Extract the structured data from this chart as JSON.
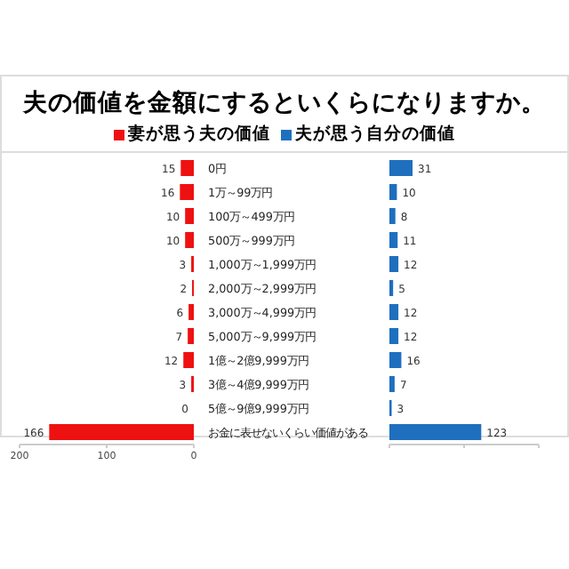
{
  "chart_data": [
    {
      "type": "bar",
      "orientation": "horizontal",
      "title": "夫の価値を金額にするといくらになりますか。",
      "legend": "top",
      "data_labels": true,
      "categories": [
        "0円",
        "1万～99万円",
        "100万～499万円",
        "500万～999万円",
        "1,000万～1,999万円",
        "2,000万～2,999万円",
        "3,000万～4,999万円",
        "5,000万～9,999万円",
        "1億～2億9,999万円",
        "3億～4億9,999万円",
        "5億～9億9,999万円",
        "お金に表せないくらい価値がある"
      ],
      "series": [
        {
          "name": "妻が思う夫の価値",
          "color": "#ee1111",
          "values": [
            15,
            16,
            10,
            10,
            3,
            2,
            6,
            7,
            12,
            3,
            0,
            166
          ]
        }
      ],
      "xlim": [
        200,
        0
      ],
      "xticks": [
        200,
        100,
        0
      ]
    },
    {
      "type": "bar",
      "orientation": "horizontal",
      "legend": "top",
      "tick_labels": false,
      "data_labels": true,
      "categories": [
        null,
        null,
        null,
        null,
        null,
        null,
        null,
        null,
        null,
        null,
        null,
        null
      ],
      "series": [
        {
          "name": "夫が思う自分の価値",
          "color": "#1f6fbf",
          "values": [
            31,
            10,
            8,
            11,
            12,
            5,
            12,
            12,
            16,
            7,
            3,
            123
          ]
        }
      ],
      "xlim": [
        0,
        200
      ],
      "xticks": [
        {
          "value": 0,
          "label": null
        },
        {
          "value": 100,
          "label": null
        },
        {
          "value": 200,
          "label": null
        }
      ]
    }
  ]
}
